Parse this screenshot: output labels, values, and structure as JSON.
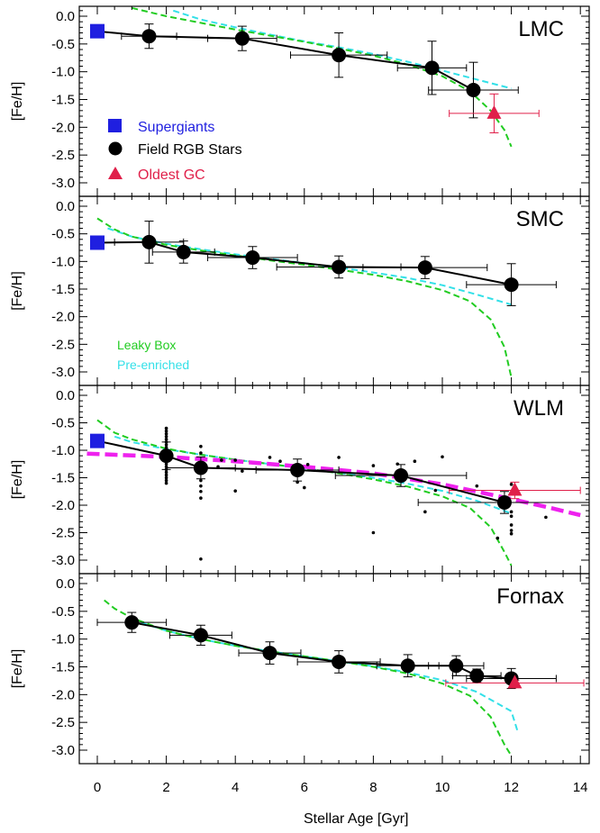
{
  "chart_data": {
    "type": "scatter",
    "xlabel": "Stellar Age  [Gyr]",
    "ylabel": "[Fe/H]",
    "xlim": [
      -0.3,
      14
    ],
    "ylim": [
      -3.1,
      0.15
    ],
    "x_ticks": [
      "0",
      "2",
      "4",
      "6",
      "8",
      "10",
      "12",
      "14"
    ],
    "y_ticks": [
      "0.0",
      "-0.5",
      "-1.0",
      "-1.5",
      "-2.0",
      "-2.5",
      "-3.0"
    ],
    "colors": {
      "supergiants": "#1f1fe0",
      "rgb": "#000000",
      "gc": "#e0204a",
      "leaky": "#22cc22",
      "preenriched": "#33e0e8",
      "magenta": "#ee22ee"
    },
    "legend": {
      "supergiants": "Supergiants",
      "rgb": "Field RGB Stars",
      "gc": "Oldest GC",
      "leaky": "Leaky Box",
      "preenriched": "Pre-enriched"
    },
    "panels": [
      {
        "name": "LMC",
        "supergiants": [
          {
            "x": 0,
            "y": -0.27
          }
        ],
        "rgb": [
          {
            "x": 1.5,
            "y": -0.36,
            "xerr": 0.8,
            "yerr": 0.22
          },
          {
            "x": 4.2,
            "y": -0.4,
            "xerr": 1.0,
            "yerr": 0.22
          },
          {
            "x": 7.0,
            "y": -0.7,
            "xerr": 1.4,
            "yerr": 0.4
          },
          {
            "x": 9.7,
            "y": -0.93,
            "xerr": 1.0,
            "yerr": 0.48
          },
          {
            "x": 10.9,
            "y": -1.33,
            "xerr": 1.3,
            "yerr": 0.5
          }
        ],
        "gc": [
          {
            "x": 11.5,
            "y": -1.75,
            "xerr": 1.3,
            "yerr": 0.35
          }
        ],
        "leaky": [
          [
            1,
            0.15
          ],
          [
            2,
            0.0
          ],
          [
            3,
            -0.12
          ],
          [
            4,
            -0.24
          ],
          [
            5,
            -0.35
          ],
          [
            6,
            -0.46
          ],
          [
            7,
            -0.58
          ],
          [
            8,
            -0.71
          ],
          [
            9,
            -0.87
          ],
          [
            10,
            -1.08
          ],
          [
            10.8,
            -1.35
          ],
          [
            11.4,
            -1.7
          ],
          [
            11.8,
            -2.05
          ],
          [
            12.0,
            -2.35
          ]
        ],
        "preenriched": [
          [
            2.2,
            0.1
          ],
          [
            3,
            -0.06
          ],
          [
            4,
            -0.2
          ],
          [
            5,
            -0.33
          ],
          [
            6,
            -0.45
          ],
          [
            7,
            -0.56
          ],
          [
            8,
            -0.68
          ],
          [
            9,
            -0.82
          ],
          [
            10,
            -0.98
          ],
          [
            11,
            -1.14
          ],
          [
            12,
            -1.3
          ]
        ],
        "magenta": []
      },
      {
        "name": "SMC",
        "supergiants": [
          {
            "x": 0,
            "y": -0.66
          }
        ],
        "rgb": [
          {
            "x": 1.5,
            "y": -0.65,
            "xerr": 1.0,
            "yerr": 0.38
          },
          {
            "x": 2.5,
            "y": -0.83,
            "xerr": 0.9,
            "yerr": 0.2
          },
          {
            "x": 4.5,
            "y": -0.93,
            "xerr": 1.3,
            "yerr": 0.2
          },
          {
            "x": 7.0,
            "y": -1.1,
            "xerr": 1.8,
            "yerr": 0.2
          },
          {
            "x": 9.5,
            "y": -1.11,
            "xerr": 1.8,
            "yerr": 0.2
          },
          {
            "x": 12.0,
            "y": -1.42,
            "xerr": 1.3,
            "yerr": 0.38
          }
        ],
        "gc": [],
        "leaky": [
          [
            0,
            -0.22
          ],
          [
            0.5,
            -0.42
          ],
          [
            1,
            -0.55
          ],
          [
            2,
            -0.7
          ],
          [
            3,
            -0.8
          ],
          [
            4,
            -0.89
          ],
          [
            5,
            -0.98
          ],
          [
            6,
            -1.06
          ],
          [
            7,
            -1.15
          ],
          [
            8,
            -1.24
          ],
          [
            9,
            -1.36
          ],
          [
            10,
            -1.52
          ],
          [
            10.8,
            -1.72
          ],
          [
            11.4,
            -2.05
          ],
          [
            11.8,
            -2.55
          ],
          [
            12.0,
            -3.1
          ]
        ],
        "preenriched": [
          [
            0.3,
            -0.4
          ],
          [
            1,
            -0.55
          ],
          [
            2,
            -0.68
          ],
          [
            3,
            -0.78
          ],
          [
            4,
            -0.87
          ],
          [
            5,
            -0.95
          ],
          [
            6,
            -1.03
          ],
          [
            7,
            -1.11
          ],
          [
            8,
            -1.2
          ],
          [
            9,
            -1.3
          ],
          [
            10,
            -1.43
          ],
          [
            11,
            -1.6
          ],
          [
            12,
            -1.78
          ]
        ],
        "magenta": []
      },
      {
        "name": "WLM",
        "supergiants": [
          {
            "x": 0,
            "y": -0.83
          }
        ],
        "rgb": [
          {
            "x": 2.0,
            "y": -1.1,
            "xerr": 0.0,
            "yerr": 0.25
          },
          {
            "x": 3.0,
            "y": -1.32,
            "xerr": 1.0,
            "yerr": 0.2
          },
          {
            "x": 5.8,
            "y": -1.36,
            "xerr": 1.2,
            "yerr": 0.2
          },
          {
            "x": 8.8,
            "y": -1.46,
            "xerr": 1.9,
            "yerr": 0.2
          },
          {
            "x": 11.8,
            "y": -1.95,
            "xerr": 2.5,
            "yerr": 0.2
          }
        ],
        "gc": [
          {
            "x": 12.1,
            "y": -1.73,
            "xerr": 1.9,
            "yerr": 0.15
          }
        ],
        "leaky": [
          [
            0,
            -0.45
          ],
          [
            0.5,
            -0.68
          ],
          [
            1,
            -0.8
          ],
          [
            2,
            -0.97
          ],
          [
            3,
            -1.08
          ],
          [
            4,
            -1.17
          ],
          [
            5,
            -1.25
          ],
          [
            6,
            -1.33
          ],
          [
            7,
            -1.42
          ],
          [
            8,
            -1.53
          ],
          [
            9,
            -1.66
          ],
          [
            10,
            -1.84
          ],
          [
            10.8,
            -2.05
          ],
          [
            11.4,
            -2.4
          ],
          [
            11.8,
            -2.85
          ],
          [
            12.0,
            -3.1
          ]
        ],
        "preenriched": [
          [
            0.5,
            -0.75
          ],
          [
            1,
            -0.85
          ],
          [
            2,
            -0.98
          ],
          [
            3,
            -1.08
          ],
          [
            4,
            -1.17
          ],
          [
            5,
            -1.25
          ],
          [
            6,
            -1.33
          ],
          [
            7,
            -1.41
          ],
          [
            8,
            -1.5
          ],
          [
            9,
            -1.61
          ],
          [
            10,
            -1.74
          ],
          [
            11,
            -1.92
          ],
          [
            12,
            -2.15
          ]
        ],
        "magenta": [
          [
            -0.3,
            -1.06
          ],
          [
            2,
            -1.12
          ],
          [
            4,
            -1.2
          ],
          [
            6,
            -1.3
          ],
          [
            8,
            -1.42
          ],
          [
            10,
            -1.62
          ],
          [
            11.5,
            -1.82
          ],
          [
            13,
            -2.03
          ],
          [
            14,
            -2.18
          ]
        ],
        "stars": [
          [
            2,
            -0.6
          ],
          [
            2,
            -0.65
          ],
          [
            2,
            -0.7
          ],
          [
            2,
            -0.75
          ],
          [
            2,
            -0.8
          ],
          [
            2,
            -0.85
          ],
          [
            2,
            -0.9
          ],
          [
            2,
            -0.95
          ],
          [
            2,
            -1.0
          ],
          [
            2,
            -1.05
          ],
          [
            2,
            -1.15
          ],
          [
            2,
            -1.2
          ],
          [
            2,
            -1.25
          ],
          [
            2,
            -1.3
          ],
          [
            2,
            -1.35
          ],
          [
            2,
            -1.4
          ],
          [
            2,
            -1.45
          ],
          [
            2,
            -1.5
          ],
          [
            2,
            -1.55
          ],
          [
            2,
            -1.6
          ],
          [
            3,
            -0.93
          ],
          [
            3,
            -1.05
          ],
          [
            3,
            -1.55
          ],
          [
            3,
            -1.65
          ],
          [
            3,
            -1.75
          ],
          [
            3,
            -1.87
          ],
          [
            3,
            -2.98
          ],
          [
            3.5,
            -1.3
          ],
          [
            3.6,
            -1.18
          ],
          [
            4.0,
            -1.18
          ],
          [
            4.2,
            -1.38
          ],
          [
            4.0,
            -1.74
          ],
          [
            5.0,
            -1.13
          ],
          [
            5.3,
            -1.2
          ],
          [
            5.8,
            -1.58
          ],
          [
            6.0,
            -1.68
          ],
          [
            6.1,
            -1.26
          ],
          [
            7.0,
            -1.13
          ],
          [
            8.0,
            -1.28
          ],
          [
            8.0,
            -2.5
          ],
          [
            8.7,
            -1.25
          ],
          [
            9.2,
            -1.2
          ],
          [
            9.5,
            -2.12
          ],
          [
            9.8,
            -1.73
          ],
          [
            10.0,
            -1.12
          ],
          [
            11.0,
            -1.65
          ],
          [
            11.6,
            -2.6
          ],
          [
            12.0,
            -1.62
          ],
          [
            12.0,
            -2.12
          ],
          [
            12.0,
            -2.2
          ],
          [
            12.0,
            -2.36
          ],
          [
            12.0,
            -2.46
          ],
          [
            12.0,
            -2.52
          ],
          [
            13.0,
            -2.22
          ]
        ]
      },
      {
        "name": "Fornax",
        "supergiants": [],
        "rgb": [
          {
            "x": 1.0,
            "y": -0.7,
            "xerr": 1.0,
            "yerr": 0.18
          },
          {
            "x": 3.0,
            "y": -0.93,
            "xerr": 0.9,
            "yerr": 0.18
          },
          {
            "x": 5.0,
            "y": -1.25,
            "xerr": 0.9,
            "yerr": 0.2
          },
          {
            "x": 7.0,
            "y": -1.41,
            "xerr": 1.2,
            "yerr": 0.2
          },
          {
            "x": 9.0,
            "y": -1.48,
            "xerr": 0.9,
            "yerr": 0.2
          },
          {
            "x": 10.4,
            "y": -1.48,
            "xerr": 0.8,
            "yerr": 0.18
          },
          {
            "x": 11.0,
            "y": -1.66,
            "xerr": 0.7,
            "yerr": 0.12
          },
          {
            "x": 12.0,
            "y": -1.71,
            "xerr": 1.3,
            "yerr": 0.18
          }
        ],
        "gc": [
          {
            "x": 12.1,
            "y": -1.79,
            "xerr": 2.0,
            "yerr": 0.05
          }
        ],
        "leaky": [
          [
            0.2,
            -0.3
          ],
          [
            0.5,
            -0.45
          ],
          [
            1,
            -0.62
          ],
          [
            2,
            -0.85
          ],
          [
            3,
            -1.0
          ],
          [
            4,
            -1.12
          ],
          [
            5,
            -1.22
          ],
          [
            6,
            -1.31
          ],
          [
            7,
            -1.4
          ],
          [
            8,
            -1.5
          ],
          [
            9,
            -1.62
          ],
          [
            10,
            -1.8
          ],
          [
            10.8,
            -2.02
          ],
          [
            11.4,
            -2.4
          ],
          [
            11.8,
            -2.9
          ],
          [
            12.0,
            -3.1
          ]
        ],
        "preenriched": [
          [
            1,
            -0.65
          ],
          [
            2,
            -0.85
          ],
          [
            3,
            -1.0
          ],
          [
            4,
            -1.12
          ],
          [
            5,
            -1.22
          ],
          [
            6,
            -1.31
          ],
          [
            7,
            -1.4
          ],
          [
            8,
            -1.49
          ],
          [
            9,
            -1.6
          ],
          [
            10,
            -1.74
          ],
          [
            11,
            -1.95
          ],
          [
            12,
            -2.3
          ],
          [
            12.2,
            -2.7
          ]
        ],
        "magenta": []
      }
    ]
  }
}
